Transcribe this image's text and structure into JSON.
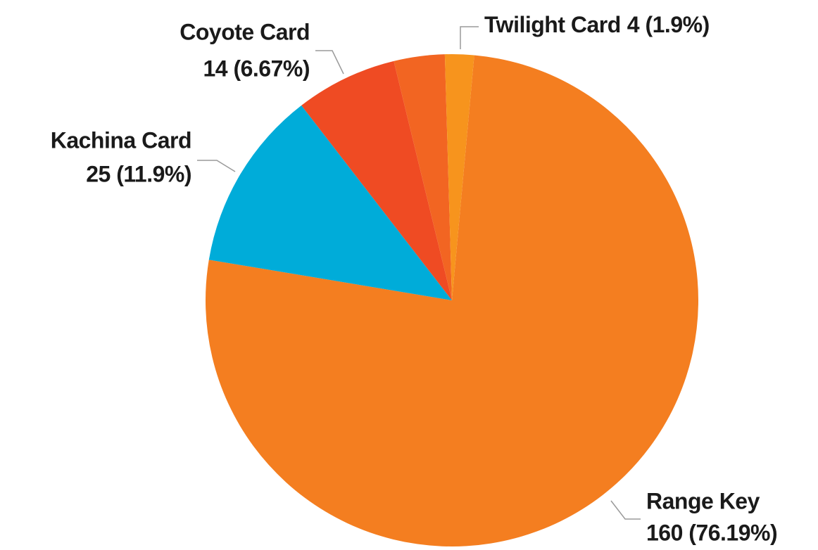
{
  "chart_data": {
    "type": "pie",
    "categories": [
      "Range Key",
      "Kachina Card",
      "Coyote Card",
      null,
      "Twilight Card"
    ],
    "values": [
      160,
      25,
      14,
      7,
      4
    ],
    "value_labels": [
      "160 (76.19%)",
      "25 (11.9%)",
      "14 (6.67%)",
      null,
      "4 (1.9%)"
    ],
    "colors": [
      "#f47e20",
      "#00acd9",
      "#ef4b23",
      "#f26522",
      "#f7941d"
    ]
  }
}
